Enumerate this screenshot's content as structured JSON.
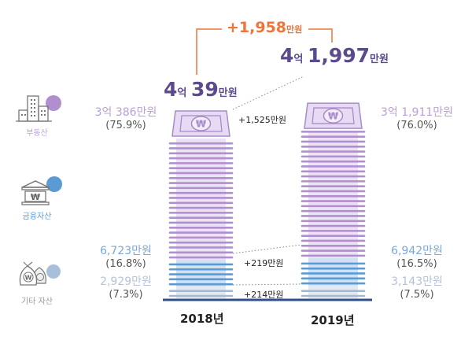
{
  "chart_data": {
    "type": "bar",
    "stacked": true,
    "unit": "만원",
    "categories": [
      "2018년",
      "2019년"
    ],
    "totals": [
      {
        "year": "2018년",
        "value": 40039,
        "label_main": "4",
        "label_eok": "억",
        "label_num": "39",
        "label_unit": "만원"
      },
      {
        "year": "2019년",
        "value": 41997,
        "label_main": "4",
        "label_eok": "억",
        "label_num": "1,997",
        "label_unit": "만원"
      }
    ],
    "total_change": {
      "value": 1958,
      "label_num": "+1,958",
      "label_unit": "만원"
    },
    "series": [
      {
        "name": "부동산",
        "color": "#b18fcf",
        "values": [
          30386,
          31911
        ],
        "value_labels": [
          "3억 386만원",
          "3억 1,911만원"
        ],
        "pct_labels": [
          "(75.9%)",
          "(76.0%)"
        ],
        "change_label": "+1,525만원"
      },
      {
        "name": "금융자산",
        "color": "#5b9bd5",
        "values": [
          6723,
          6942
        ],
        "value_labels": [
          "6,723만원",
          "6,942만원"
        ],
        "pct_labels": [
          "(16.8%)",
          "(16.5%)"
        ],
        "change_label": "+219만원"
      },
      {
        "name": "기타 자산",
        "color": "#a9b8cf",
        "values": [
          2929,
          3143
        ],
        "value_labels": [
          "2,929만원",
          "3,143만원"
        ],
        "pct_labels": [
          "(7.3%)",
          "(7.5%)"
        ],
        "change_label": "+214만원"
      }
    ],
    "legend_position": "left",
    "grid": false
  },
  "colors": {
    "real_estate": "#b18fcf",
    "real_estate_text": "#b9a0d6",
    "financial": "#5b9bd5",
    "financial_text": "#7aa7d8",
    "other": "#a9b8cf",
    "other_text": "#b5c2d6",
    "total": "#5b4a8e",
    "change": "#f0743a",
    "baseline": "#2f4f8f"
  },
  "icons": {
    "real_estate": "building-icon",
    "financial": "bank-icon",
    "other": "money-bag-icon",
    "bill": "won-bill-icon"
  }
}
